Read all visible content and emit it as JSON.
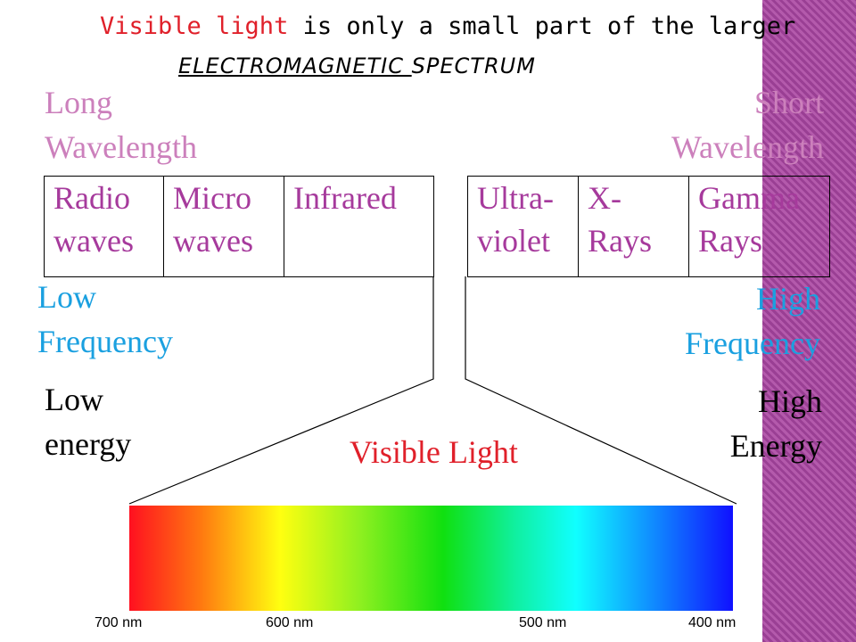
{
  "title": {
    "highlight": "Visible light",
    "rest": "is only a small part of the larger",
    "underlined": "ELECTROMAGNETIC ",
    "tail": "SPECTRUM"
  },
  "left": {
    "wavelength": [
      "Long",
      "Wavelength"
    ],
    "frequency": [
      "Low",
      "Frequency"
    ],
    "energy": [
      "Low",
      "energy"
    ]
  },
  "right": {
    "wavelength": [
      "Short",
      "Wavelength"
    ],
    "frequency": [
      "High",
      "Frequency"
    ],
    "energy": [
      "High",
      "Energy"
    ]
  },
  "boxes": [
    [
      "Radio",
      "waves"
    ],
    [
      "Micro",
      "waves"
    ],
    [
      "Infrared"
    ],
    [
      "Ultra-",
      "violet"
    ],
    [
      "X-",
      "Rays"
    ],
    [
      "Gamma",
      "Rays"
    ]
  ],
  "visible_label": "Visible Light",
  "scale": [
    "700 nm",
    "600 nm",
    "500 nm",
    "400 nm"
  ]
}
